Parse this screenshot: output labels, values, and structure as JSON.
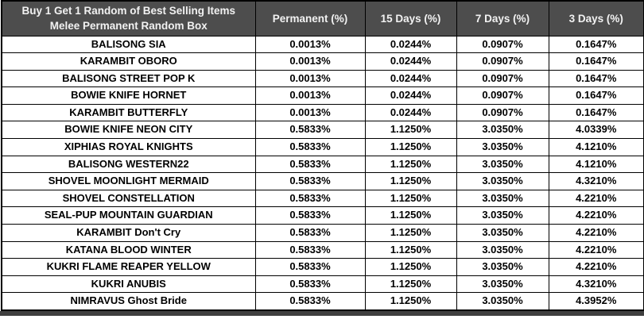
{
  "table": {
    "header": {
      "title_line1": "Buy 1 Get 1 Random of Best Selling Items",
      "title_line2": "Melee Permanent Random Box",
      "columns": [
        "Permanent (%)",
        "15 Days (%)",
        "7 Days (%)",
        "3 Days (%)"
      ]
    },
    "rows": [
      {
        "item": "BALISONG SIA",
        "permanent": "0.0013%",
        "d15": "0.0244%",
        "d7": "0.0907%",
        "d3": "0.1647%"
      },
      {
        "item": "KARAMBIT OBORO",
        "permanent": "0.0013%",
        "d15": "0.0244%",
        "d7": "0.0907%",
        "d3": "0.1647%"
      },
      {
        "item": "BALISONG STREET POP K",
        "permanent": "0.0013%",
        "d15": "0.0244%",
        "d7": "0.0907%",
        "d3": "0.1647%"
      },
      {
        "item": "BOWIE KNIFE HORNET",
        "permanent": "0.0013%",
        "d15": "0.0244%",
        "d7": "0.0907%",
        "d3": "0.1647%"
      },
      {
        "item": "KARAMBIT BUTTERFLY",
        "permanent": "0.0013%",
        "d15": "0.0244%",
        "d7": "0.0907%",
        "d3": "0.1647%"
      },
      {
        "item": "BOWIE KNIFE NEON CITY",
        "permanent": "0.5833%",
        "d15": "1.1250%",
        "d7": "3.0350%",
        "d3": "4.0339%"
      },
      {
        "item": "XIPHIAS ROYAL KNIGHTS",
        "permanent": "0.5833%",
        "d15": "1.1250%",
        "d7": "3.0350%",
        "d3": "4.1210%"
      },
      {
        "item": "BALISONG WESTERN22",
        "permanent": "0.5833%",
        "d15": "1.1250%",
        "d7": "3.0350%",
        "d3": "4.1210%"
      },
      {
        "item": "SHOVEL MOONLIGHT MERMAID",
        "permanent": "0.5833%",
        "d15": "1.1250%",
        "d7": "3.0350%",
        "d3": "4.3210%"
      },
      {
        "item": "SHOVEL CONSTELLATION",
        "permanent": "0.5833%",
        "d15": "1.1250%",
        "d7": "3.0350%",
        "d3": "4.2210%"
      },
      {
        "item": "SEAL-PUP MOUNTAIN GUARDIAN",
        "permanent": "0.5833%",
        "d15": "1.1250%",
        "d7": "3.0350%",
        "d3": "4.2210%"
      },
      {
        "item": "KARAMBIT Don't Cry",
        "permanent": "0.5833%",
        "d15": "1.1250%",
        "d7": "3.0350%",
        "d3": "4.2210%"
      },
      {
        "item": "KATANA BLOOD WINTER",
        "permanent": "0.5833%",
        "d15": "1.1250%",
        "d7": "3.0350%",
        "d3": "4.2210%"
      },
      {
        "item": "KUKRI FLAME REAPER YELLOW",
        "permanent": "0.5833%",
        "d15": "1.1250%",
        "d7": "3.0350%",
        "d3": "4.2210%"
      },
      {
        "item": "KUKRI ANUBIS",
        "permanent": "0.5833%",
        "d15": "1.1250%",
        "d7": "3.0350%",
        "d3": "4.3210%"
      },
      {
        "item": "NIMRAVUS Ghost Bride",
        "permanent": "0.5833%",
        "d15": "1.1250%",
        "d7": "3.0350%",
        "d3": "4.3952%"
      }
    ],
    "colors": {
      "header_bg": "#4d4d4d",
      "header_text": "#f2f2f2",
      "border": "#000000",
      "bottom_bar": "#3f3f3f"
    }
  }
}
